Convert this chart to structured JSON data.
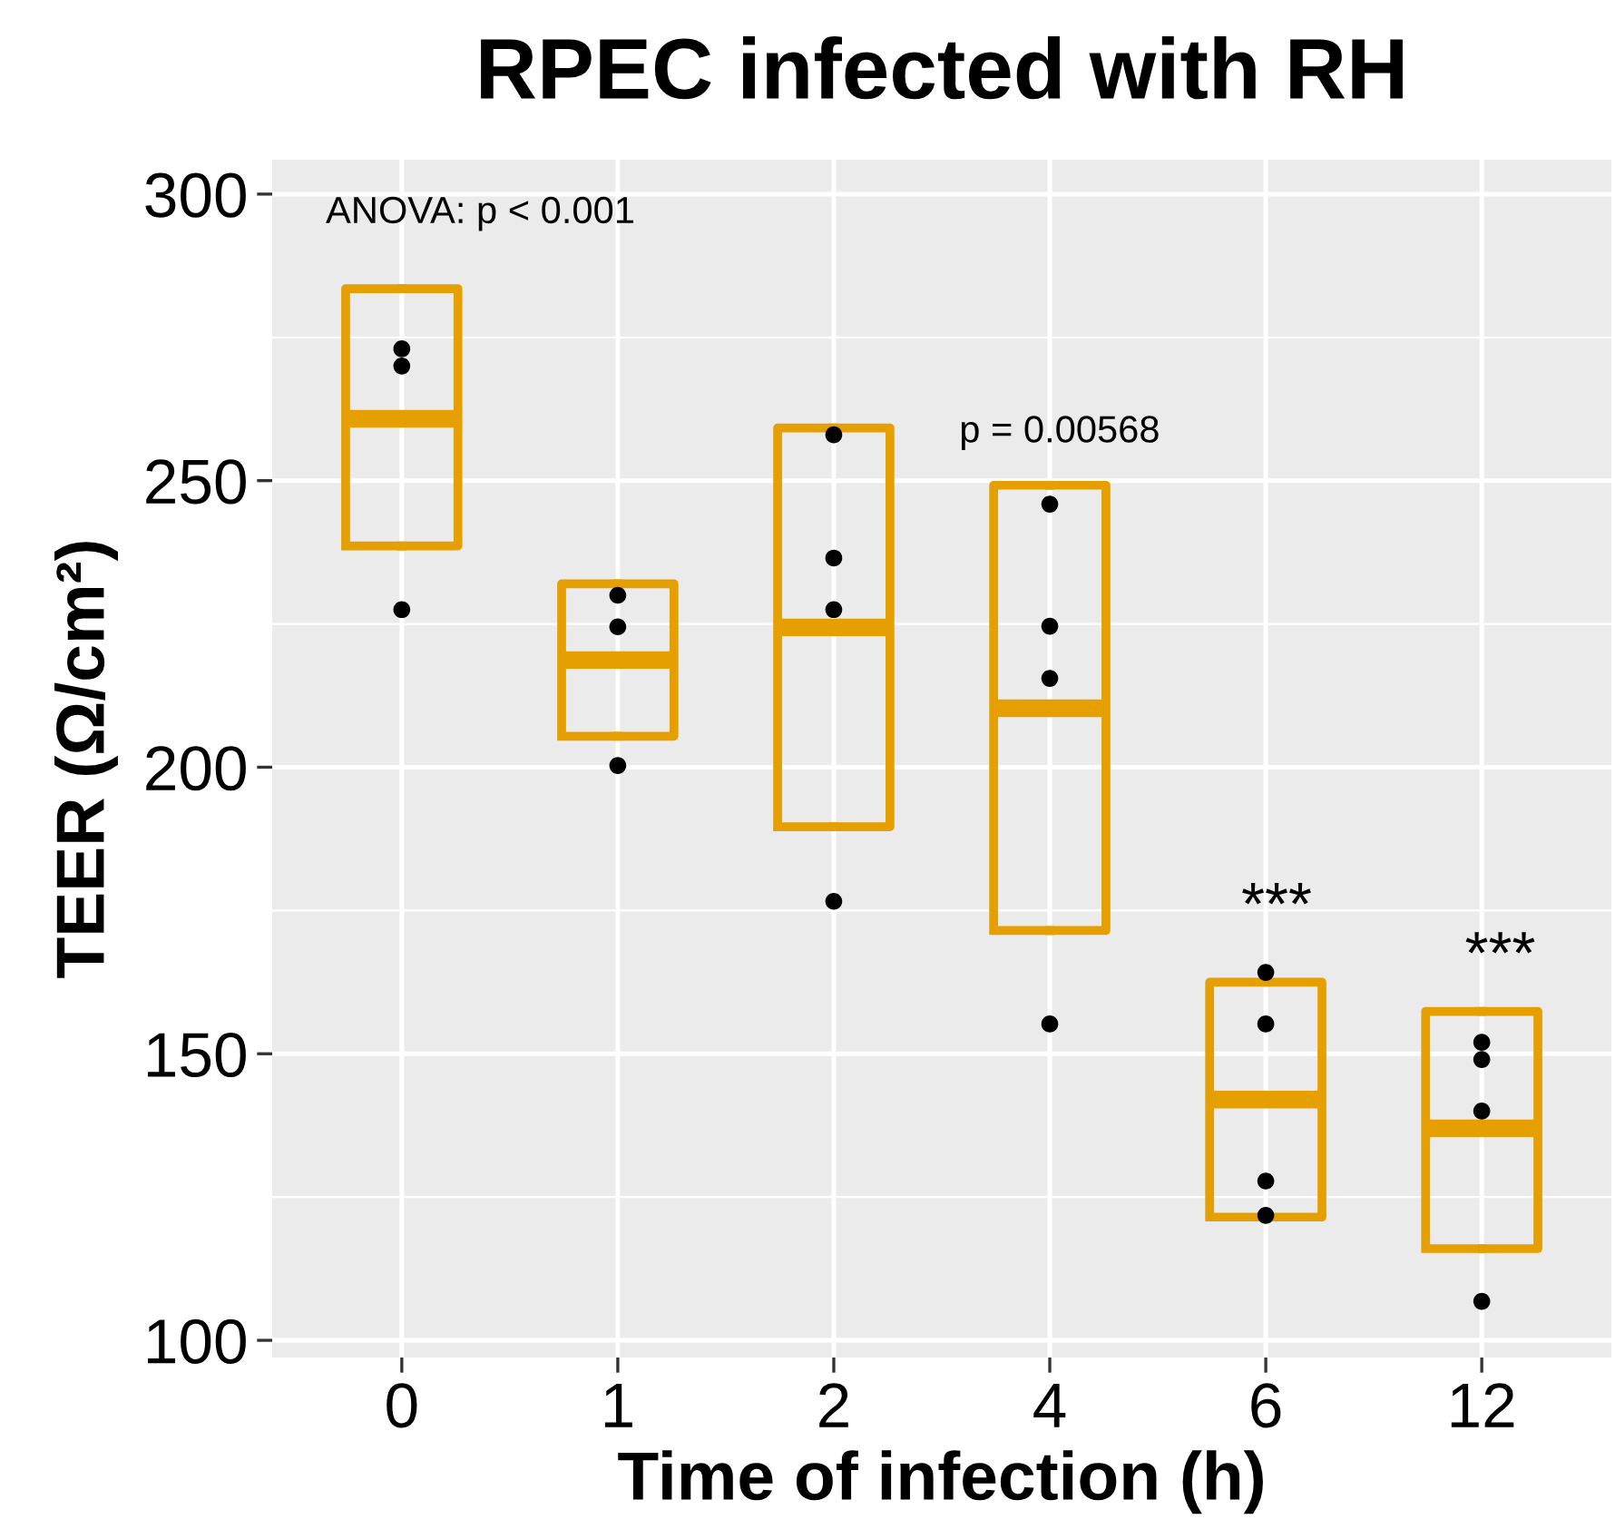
{
  "chart_data": {
    "type": "box",
    "title": "RPEC infected with RH",
    "xlabel": "Time of infection (h)",
    "ylabel": "TEER (Ω/cm²)",
    "categories": [
      "0",
      "1",
      "2",
      "4",
      "6",
      "12"
    ],
    "series": [
      {
        "color": "#e69f00",
        "boxes": [
          {
            "low": 238.6,
            "q1": 238.6,
            "median": 260.8,
            "q3": 283.5,
            "high": 283.5
          },
          {
            "low": 205.4,
            "q1": 205.4,
            "median": 218.7,
            "q3": 232,
            "high": 232
          },
          {
            "low": 189.6,
            "q1": 189.6,
            "median": 224.4,
            "q3": 259.2,
            "high": 259.2
          },
          {
            "low": 171.5,
            "q1": 171.5,
            "median": 210.3,
            "q3": 249.2,
            "high": 249.2
          },
          {
            "low": 121.5,
            "q1": 121.5,
            "median": 142,
            "q3": 162.5,
            "high": 162.5
          },
          {
            "low": 116,
            "q1": 116,
            "median": 137,
            "q3": 157.4,
            "high": 157.4
          }
        ]
      },
      {
        "type": "scatter",
        "color": "#000000",
        "x": [
          "0",
          "0",
          "0",
          "1",
          "1",
          "1",
          "2",
          "2",
          "2",
          "2",
          "4",
          "4",
          "4",
          "4",
          "6",
          "6",
          "6",
          "6",
          "12",
          "12",
          "12",
          "12"
        ],
        "values": [
          273,
          270,
          227.5,
          230,
          224.5,
          200.3,
          258,
          236.5,
          227.5,
          176.6,
          245.9,
          224.6,
          215.5,
          155.2,
          164.2,
          155.2,
          127.8,
          121.8,
          152,
          149,
          140,
          106.8
        ]
      }
    ],
    "ylim": [
      97,
      306
    ],
    "yticks": [
      100,
      150,
      200,
      250,
      300
    ],
    "grid": true,
    "annotations": [
      "ANOVA: p < 0.001",
      "p = 0.00568",
      "***",
      "***"
    ]
  }
}
